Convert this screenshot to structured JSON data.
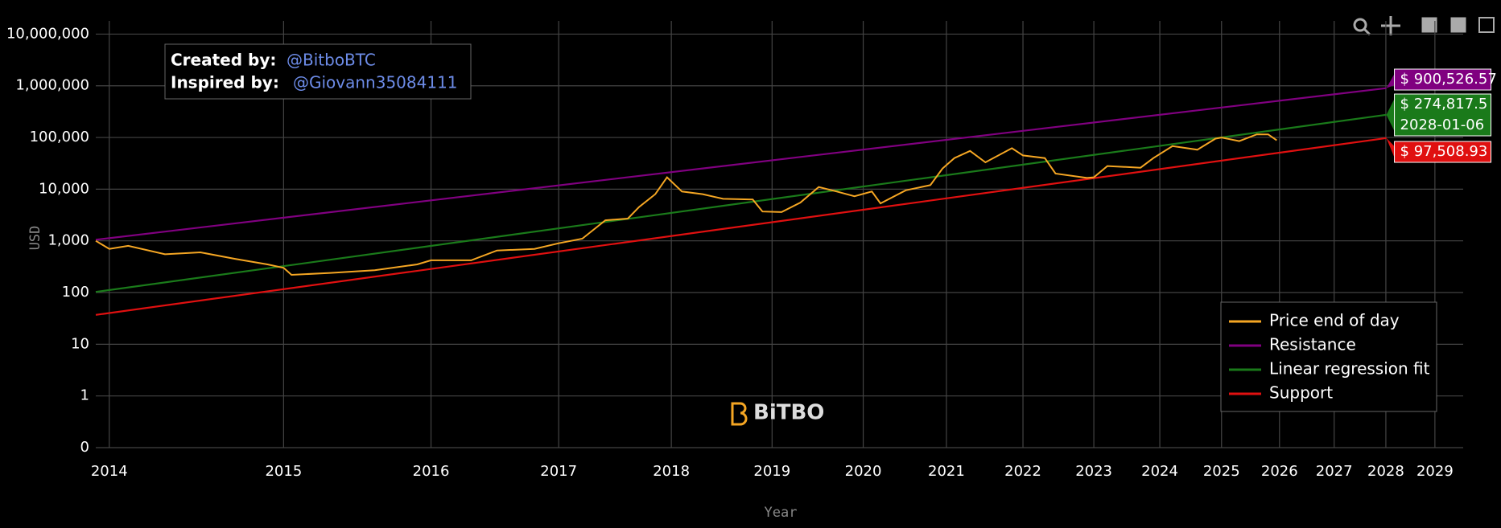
{
  "chart_data": {
    "type": "line",
    "credit": {
      "created_label": "Created by:",
      "created_by": "@BitboBTC",
      "inspired_label": "Inspired by:",
      "inspired_by": "@Giovann35084111"
    },
    "watermark": "BiTBO",
    "xlabel": "Year",
    "ylabel": "USD",
    "x_log_origin": 2009.0,
    "xlim": [
      2013.93,
      2029.6
    ],
    "xticks": [
      2014,
      2015,
      2016,
      2017,
      2018,
      2019,
      2020,
      2021,
      2022,
      2023,
      2024,
      2025,
      2026,
      2027,
      2028,
      2029
    ],
    "ylog": true,
    "ylim": [
      0.1,
      18000000
    ],
    "yticks": [
      {
        "value": 0.1,
        "label": "0"
      },
      1,
      10,
      100,
      {
        "value": 1000,
        "label": "1,000"
      },
      {
        "value": 10000,
        "label": "10,000"
      },
      {
        "value": 100000,
        "label": "100,000"
      },
      {
        "value": 1000000,
        "label": "1,000,000"
      },
      {
        "value": 10000000,
        "label": "10,000,000"
      }
    ],
    "grid": true,
    "legend": "lower right",
    "hover": {
      "date": "2028-01-06",
      "labels": [
        "$ 900,526.57",
        "$ 274,817.5",
        "$ 97,508.93"
      ]
    },
    "series": [
      {
        "name": "Price end of day",
        "color": "#f5a623",
        "x": [
          2013.93,
          2014.0,
          2014.1,
          2014.3,
          2014.5,
          2014.7,
          2014.9,
          2015.0,
          2015.05,
          2015.3,
          2015.6,
          2015.9,
          2016.0,
          2016.3,
          2016.5,
          2016.8,
          2017.0,
          2017.2,
          2017.4,
          2017.6,
          2017.7,
          2017.85,
          2017.96,
          2018.1,
          2018.3,
          2018.5,
          2018.8,
          2018.9,
          2019.1,
          2019.3,
          2019.5,
          2019.7,
          2019.9,
          2020.1,
          2020.2,
          2020.5,
          2020.8,
          2020.95,
          2021.1,
          2021.3,
          2021.5,
          2021.85,
          2022.0,
          2022.3,
          2022.45,
          2022.9,
          2023.0,
          2023.2,
          2023.7,
          2023.9,
          2024.2,
          2024.6,
          2024.9,
          2025.0,
          2025.3,
          2025.6,
          2025.8,
          2025.95
        ],
        "values": [
          1000,
          700,
          800,
          550,
          600,
          450,
          350,
          300,
          220,
          240,
          270,
          350,
          420,
          420,
          650,
          700,
          900,
          1100,
          2500,
          2700,
          4500,
          8000,
          17000,
          9000,
          8000,
          6500,
          6300,
          3700,
          3600,
          5500,
          11000,
          9000,
          7300,
          9000,
          5300,
          9500,
          12000,
          25000,
          40000,
          55000,
          33000,
          62000,
          45000,
          40000,
          20000,
          16500,
          17000,
          28000,
          26000,
          40000,
          68000,
          58000,
          95000,
          100000,
          85000,
          115000,
          115000,
          88000
        ]
      },
      {
        "name": "Resistance",
        "color": "#800080",
        "x": [
          2013.93,
          2028.01
        ],
        "values": [
          1050,
          900526.57
        ]
      },
      {
        "name": "Linear regression fit",
        "color": "#1a7a1a",
        "x": [
          2013.93,
          2028.01
        ],
        "values": [
          103,
          274817.5
        ]
      },
      {
        "name": "Support",
        "color": "#e01010",
        "x": [
          2013.93,
          2028.01
        ],
        "values": [
          37,
          97508.93
        ]
      }
    ]
  }
}
